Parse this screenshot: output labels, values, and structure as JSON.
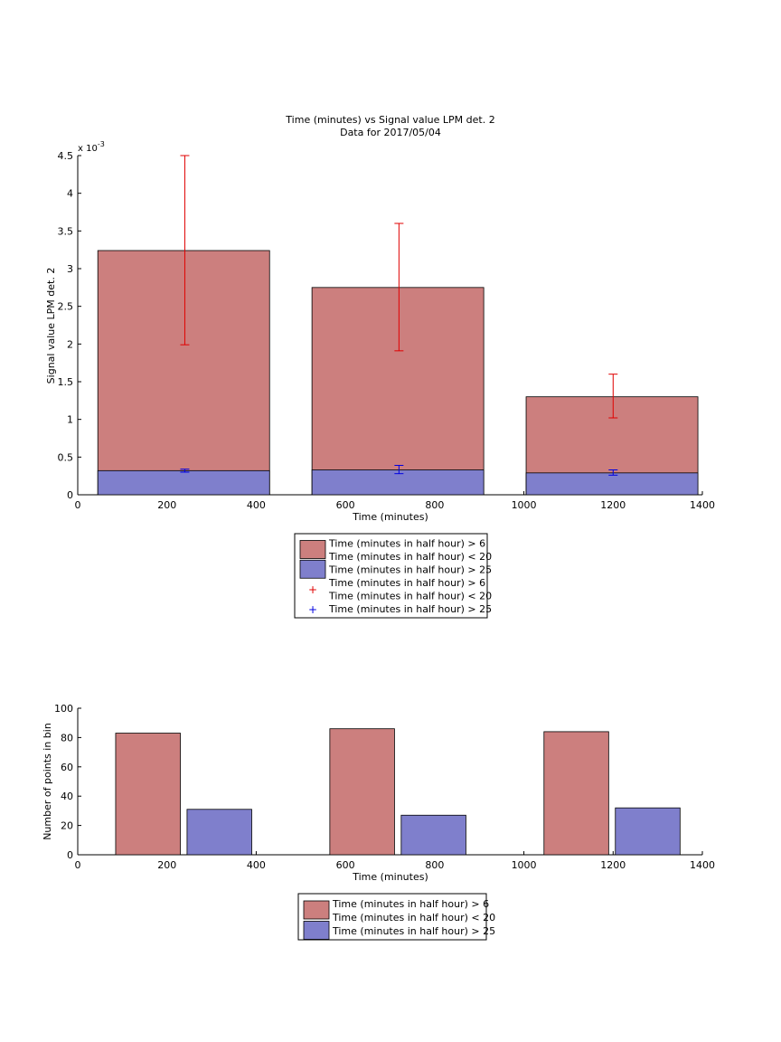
{
  "colors": {
    "series_red": "#cc7f7e",
    "series_blue": "#7f7fcc",
    "errorbar_red": "#e00000",
    "errorbar_blue": "#0000e0"
  },
  "chart_data": [
    {
      "type": "bar",
      "title": "Time (minutes) vs Signal value LPM det. 2",
      "subtitle": "Data for 2017/05/04",
      "xlabel": "Time (minutes)",
      "ylabel": "Signal value LPM det. 2",
      "exponent_label": "x 10",
      "exponent_power": "-3",
      "xlim": [
        0,
        1400
      ],
      "ylim": [
        0,
        0.0045
      ],
      "x_ticks": [
        0,
        200,
        400,
        600,
        800,
        1000,
        1200,
        1400
      ],
      "y_ticks": [
        0,
        0.5,
        1,
        1.5,
        2,
        2.5,
        3,
        3.5,
        4,
        4.5
      ],
      "y_scale": 0.001,
      "grid": false,
      "layout": "overlaid",
      "bars": [
        {
          "x0": 45,
          "x1": 430,
          "center": 240
        },
        {
          "x0": 525,
          "x1": 910,
          "center": 720
        },
        {
          "x0": 1005,
          "x1": 1390,
          "center": 1200
        }
      ],
      "series": [
        {
          "name": "Time (minutes in half hour) > 6\nTime (minutes in half hour) < 20",
          "color_key": "series_red",
          "values": [
            0.00324,
            0.00275,
            0.0013
          ],
          "err_low": [
            0.00199,
            0.00191,
            0.00102
          ],
          "err_high": [
            0.0045,
            0.0036,
            0.0016
          ],
          "err_color_key": "errorbar_red"
        },
        {
          "name": "Time (minutes in half hour) > 25",
          "color_key": "series_blue",
          "values": [
            0.00032,
            0.00033,
            0.00029
          ],
          "err_low": [
            0.0003,
            0.00028,
            0.00026
          ],
          "err_high": [
            0.00034,
            0.00039,
            0.00033
          ],
          "err_color_key": "errorbar_blue"
        }
      ],
      "legend": {
        "placement": "below",
        "entries": [
          {
            "kind": "patch",
            "color_key": "series_red",
            "lines": [
              "Time (minutes in half hour) > 6",
              "Time (minutes in half hour) < 20"
            ]
          },
          {
            "kind": "patch",
            "color_key": "series_blue",
            "lines": [
              "Time (minutes in half hour) > 25"
            ]
          },
          {
            "kind": "marker",
            "color_key": "errorbar_red",
            "lines": [
              "Time (minutes in half hour) > 6",
              "Time (minutes in half hour) < 20"
            ]
          },
          {
            "kind": "marker",
            "color_key": "errorbar_blue",
            "lines": [
              "Time (minutes in half hour) > 25"
            ]
          }
        ]
      }
    },
    {
      "type": "bar",
      "title": "",
      "xlabel": "Time (minutes)",
      "ylabel": "Number of points in bin",
      "xlim": [
        0,
        1400
      ],
      "ylim": [
        0,
        100
      ],
      "x_ticks": [
        0,
        200,
        400,
        600,
        800,
        1000,
        1200,
        1400
      ],
      "y_ticks": [
        0,
        20,
        40,
        60,
        80,
        100
      ],
      "y_scale": 1,
      "grid": false,
      "layout": "grouped",
      "bars_per_series": [
        [
          {
            "x0": 85,
            "x1": 230
          },
          {
            "x0": 565,
            "x1": 710
          },
          {
            "x0": 1045,
            "x1": 1190
          }
        ],
        [
          {
            "x0": 245,
            "x1": 390
          },
          {
            "x0": 725,
            "x1": 870
          },
          {
            "x0": 1205,
            "x1": 1350
          }
        ]
      ],
      "series": [
        {
          "name": "Time (minutes in half hour) > 6\nTime (minutes in half hour) < 20",
          "color_key": "series_red",
          "values": [
            83,
            86,
            84
          ]
        },
        {
          "name": "Time (minutes in half hour) > 25",
          "color_key": "series_blue",
          "values": [
            31,
            27,
            32
          ]
        }
      ],
      "legend": {
        "placement": "below",
        "entries": [
          {
            "kind": "patch",
            "color_key": "series_red",
            "lines": [
              "Time (minutes in half hour) > 6",
              "Time (minutes in half hour) < 20"
            ]
          },
          {
            "kind": "patch",
            "color_key": "series_blue",
            "lines": [
              "Time (minutes in half hour) > 25"
            ]
          }
        ]
      }
    }
  ]
}
